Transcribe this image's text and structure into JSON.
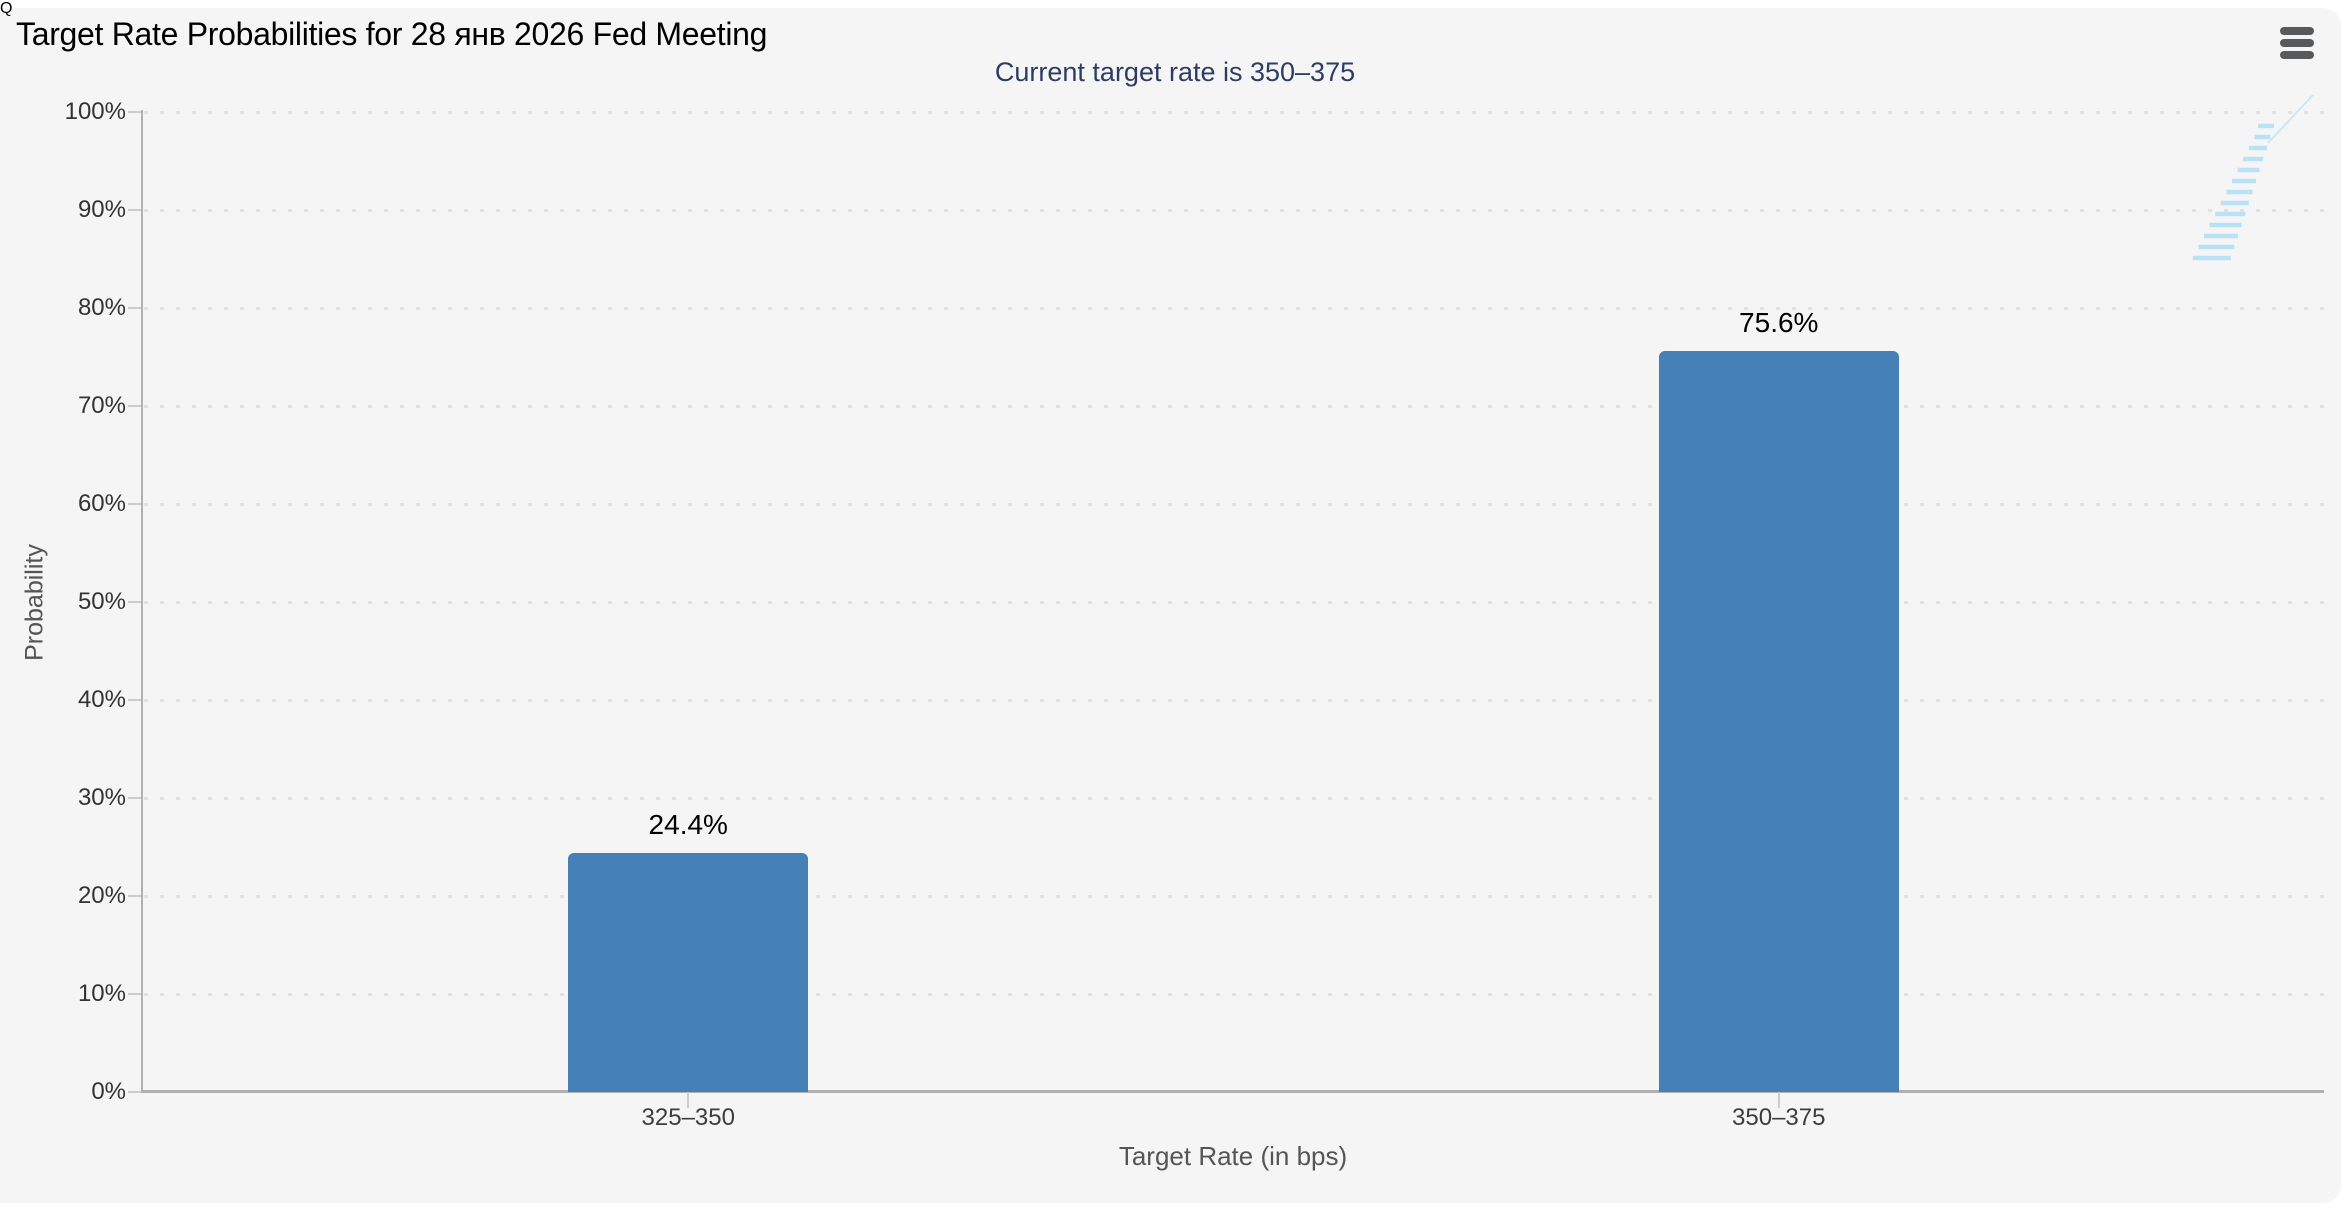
{
  "page": {
    "background": "#ffffff",
    "panel_background": "#f5f5f6"
  },
  "header": {
    "title": "Target Rate Probabilities for 28 янв 2026 Fed Meeting",
    "menu_icon": "hamburger-menu"
  },
  "chart_data": {
    "type": "bar",
    "title": "Target Rate Probabilities for 28 янв 2026 Fed Meeting",
    "subtitle": "Current target rate is 350–375",
    "categories": [
      "325–350",
      "350–375"
    ],
    "values": [
      24.4,
      75.6
    ],
    "value_labels": [
      "24.4%",
      "75.6%"
    ],
    "xlabel": "Target Rate (in bps)",
    "ylabel": "Probability",
    "ylim": [
      0,
      100
    ],
    "ytick_step": 10,
    "yticks": [
      "0%",
      "10%",
      "20%",
      "30%",
      "40%",
      "50%",
      "60%",
      "70%",
      "80%",
      "90%",
      "100%"
    ],
    "grid": "horizontal-dotted",
    "legend": "none",
    "bar_color": "#4580b6"
  },
  "watermark": {
    "letter": "Q",
    "q_color": "#c6c6c6",
    "stripe_color": "#b9e2f7"
  },
  "colors": {
    "subtitle": "#2d3d62",
    "axis_line": "#b0b0b0",
    "tick": "#cccccc",
    "grid_dot": "#e1e1e1",
    "y_label": "#333333",
    "x_label": "#3d3d3d",
    "axis_title": "#555555",
    "value_label": "#000000",
    "menu_icon": "#58595b"
  }
}
